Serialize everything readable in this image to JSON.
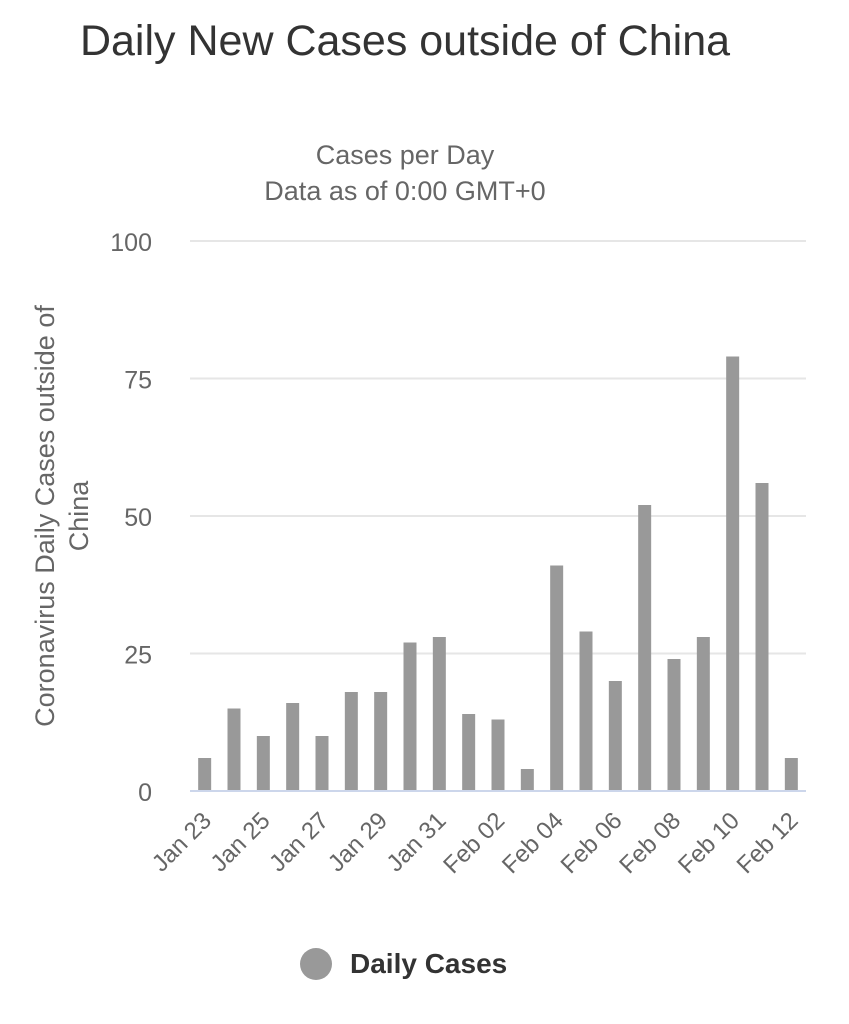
{
  "chart_data": {
    "type": "bar",
    "title": "Daily New Cases outside of China",
    "subtitle_lines": [
      "Cases per Day",
      "Data as of 0:00 GMT+0"
    ],
    "ylabel": "Coronavirus Daily Cases outside of China",
    "xlabel": "",
    "ylim": [
      0,
      100
    ],
    "yticks": [
      0,
      25,
      50,
      75,
      100
    ],
    "grid": true,
    "legend_position": "bottom",
    "categories": [
      "Jan 23",
      "Jan 24",
      "Jan 25",
      "Jan 26",
      "Jan 27",
      "Jan 28",
      "Jan 29",
      "Jan 30",
      "Jan 31",
      "Feb 01",
      "Feb 02",
      "Feb 03",
      "Feb 04",
      "Feb 05",
      "Feb 06",
      "Feb 07",
      "Feb 08",
      "Feb 09",
      "Feb 10",
      "Feb 11",
      "Feb 12"
    ],
    "xtick_labels": [
      "Jan 23",
      "Jan 25",
      "Jan 27",
      "Jan 29",
      "Jan 31",
      "Feb 02",
      "Feb 04",
      "Feb 06",
      "Feb 08",
      "Feb 10",
      "Feb 12"
    ],
    "series": [
      {
        "name": "Daily Cases",
        "color": "#999999",
        "values": [
          6,
          15,
          10,
          16,
          10,
          18,
          18,
          27,
          28,
          14,
          13,
          4,
          41,
          29,
          20,
          52,
          24,
          28,
          79,
          56,
          6
        ]
      }
    ]
  }
}
